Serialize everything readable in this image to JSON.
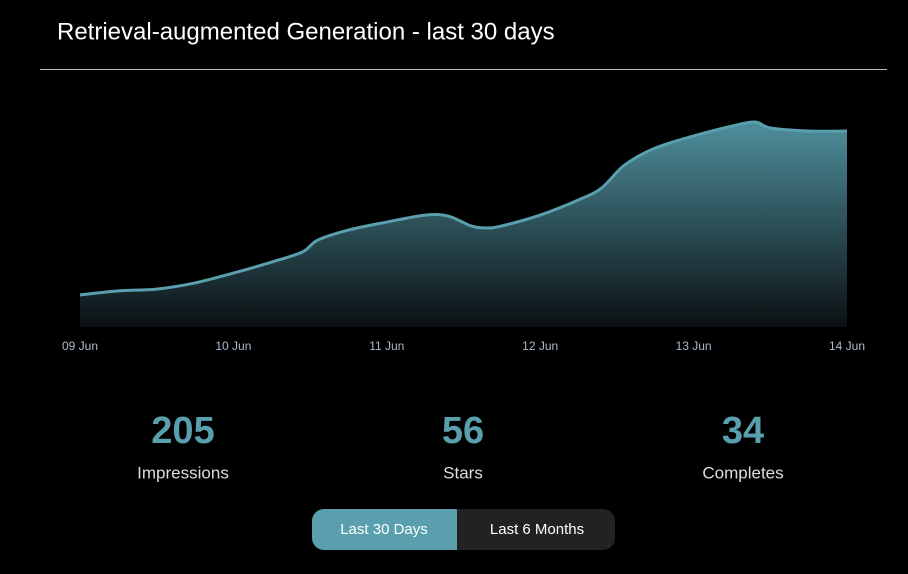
{
  "title": "Retrieval-augmented Generation - last 30 days",
  "chart_data": {
    "type": "area",
    "color": "#5a9fae",
    "x": [
      0,
      0.25,
      0.5,
      0.75,
      1,
      1.25,
      1.45,
      1.55,
      1.75,
      2,
      2.25,
      2.4,
      2.55,
      2.65,
      2.75,
      3,
      3.25,
      3.4,
      3.55,
      3.75,
      4,
      4.25,
      4.4,
      4.5,
      4.75,
      5
    ],
    "values": [
      15.6,
      17.6,
      18.5,
      21.5,
      26.3,
      31.7,
      36.6,
      42.4,
      47.3,
      51.2,
      54.6,
      54.1,
      49.3,
      48.3,
      49.3,
      54.6,
      62,
      67.8,
      79,
      87.3,
      93.2,
      98,
      100,
      97.1,
      95.6,
      95.6
    ],
    "xlim": [
      0,
      5
    ],
    "ylim": [
      0,
      100
    ],
    "xticks": [
      {
        "value": 0,
        "label": "09 Jun"
      },
      {
        "value": 1,
        "label": "10 Jun"
      },
      {
        "value": 2,
        "label": "11 Jun"
      },
      {
        "value": 3,
        "label": "12 Jun"
      },
      {
        "value": 4,
        "label": "13 Jun"
      },
      {
        "value": 5,
        "label": "14 Jun"
      }
    ]
  },
  "stats": [
    {
      "value": 205,
      "label": "Impressions"
    },
    {
      "value": 56,
      "label": "Stars"
    },
    {
      "value": 34,
      "label": "Completes"
    }
  ],
  "buttons": [
    "Last 30 Days",
    "Last 6 Months"
  ]
}
